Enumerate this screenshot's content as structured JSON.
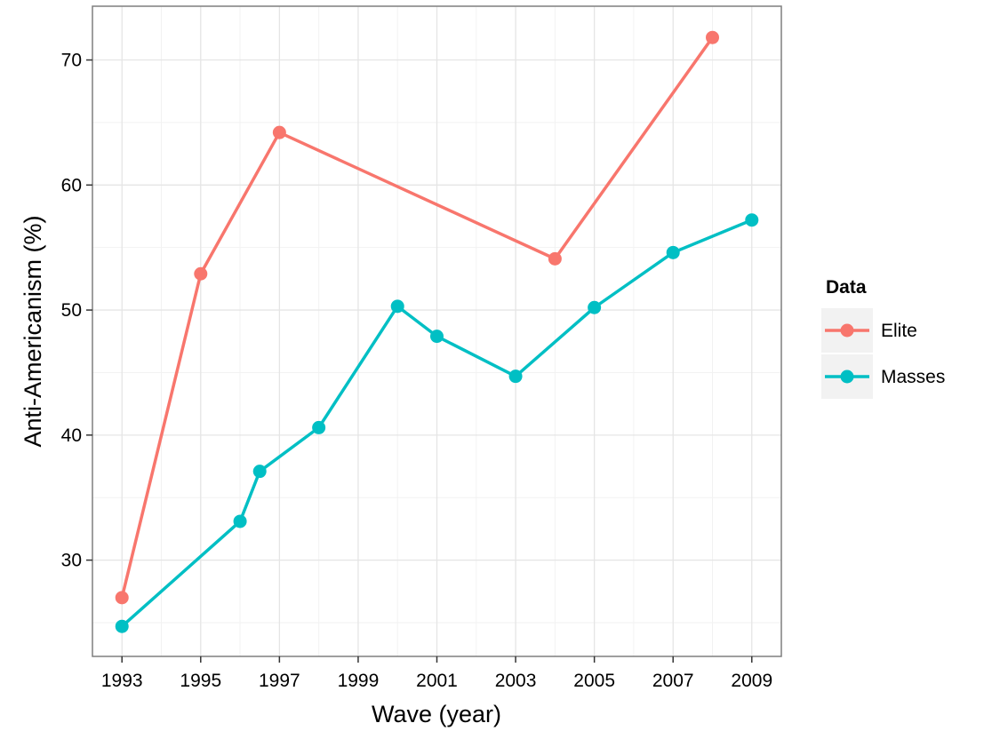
{
  "chart_data": {
    "type": "line",
    "xlabel": "Wave (year)",
    "ylabel": "Anti-Americanism (%)",
    "xlim": [
      1992.25,
      2009.75
    ],
    "ylim": [
      22.3,
      74.3
    ],
    "x_ticks": [
      1993,
      1995,
      1997,
      1999,
      2001,
      2003,
      2005,
      2007,
      2009
    ],
    "y_ticks": [
      30,
      40,
      50,
      60,
      70
    ],
    "grid": true,
    "legend": {
      "title": "Data",
      "position": "right"
    },
    "series": [
      {
        "name": "Elite",
        "color": "#F8766D",
        "x": [
          1993,
          1995,
          1997,
          2004,
          2008
        ],
        "y": [
          27.0,
          52.9,
          64.2,
          54.1,
          71.8
        ]
      },
      {
        "name": "Masses",
        "color": "#00BFC4",
        "x": [
          1993,
          1996,
          1996.5,
          1998,
          2000,
          2001,
          2003,
          2005,
          2007,
          2009
        ],
        "y": [
          24.7,
          33.1,
          37.1,
          40.6,
          50.3,
          47.9,
          44.7,
          50.2,
          54.6,
          57.2
        ]
      }
    ]
  }
}
